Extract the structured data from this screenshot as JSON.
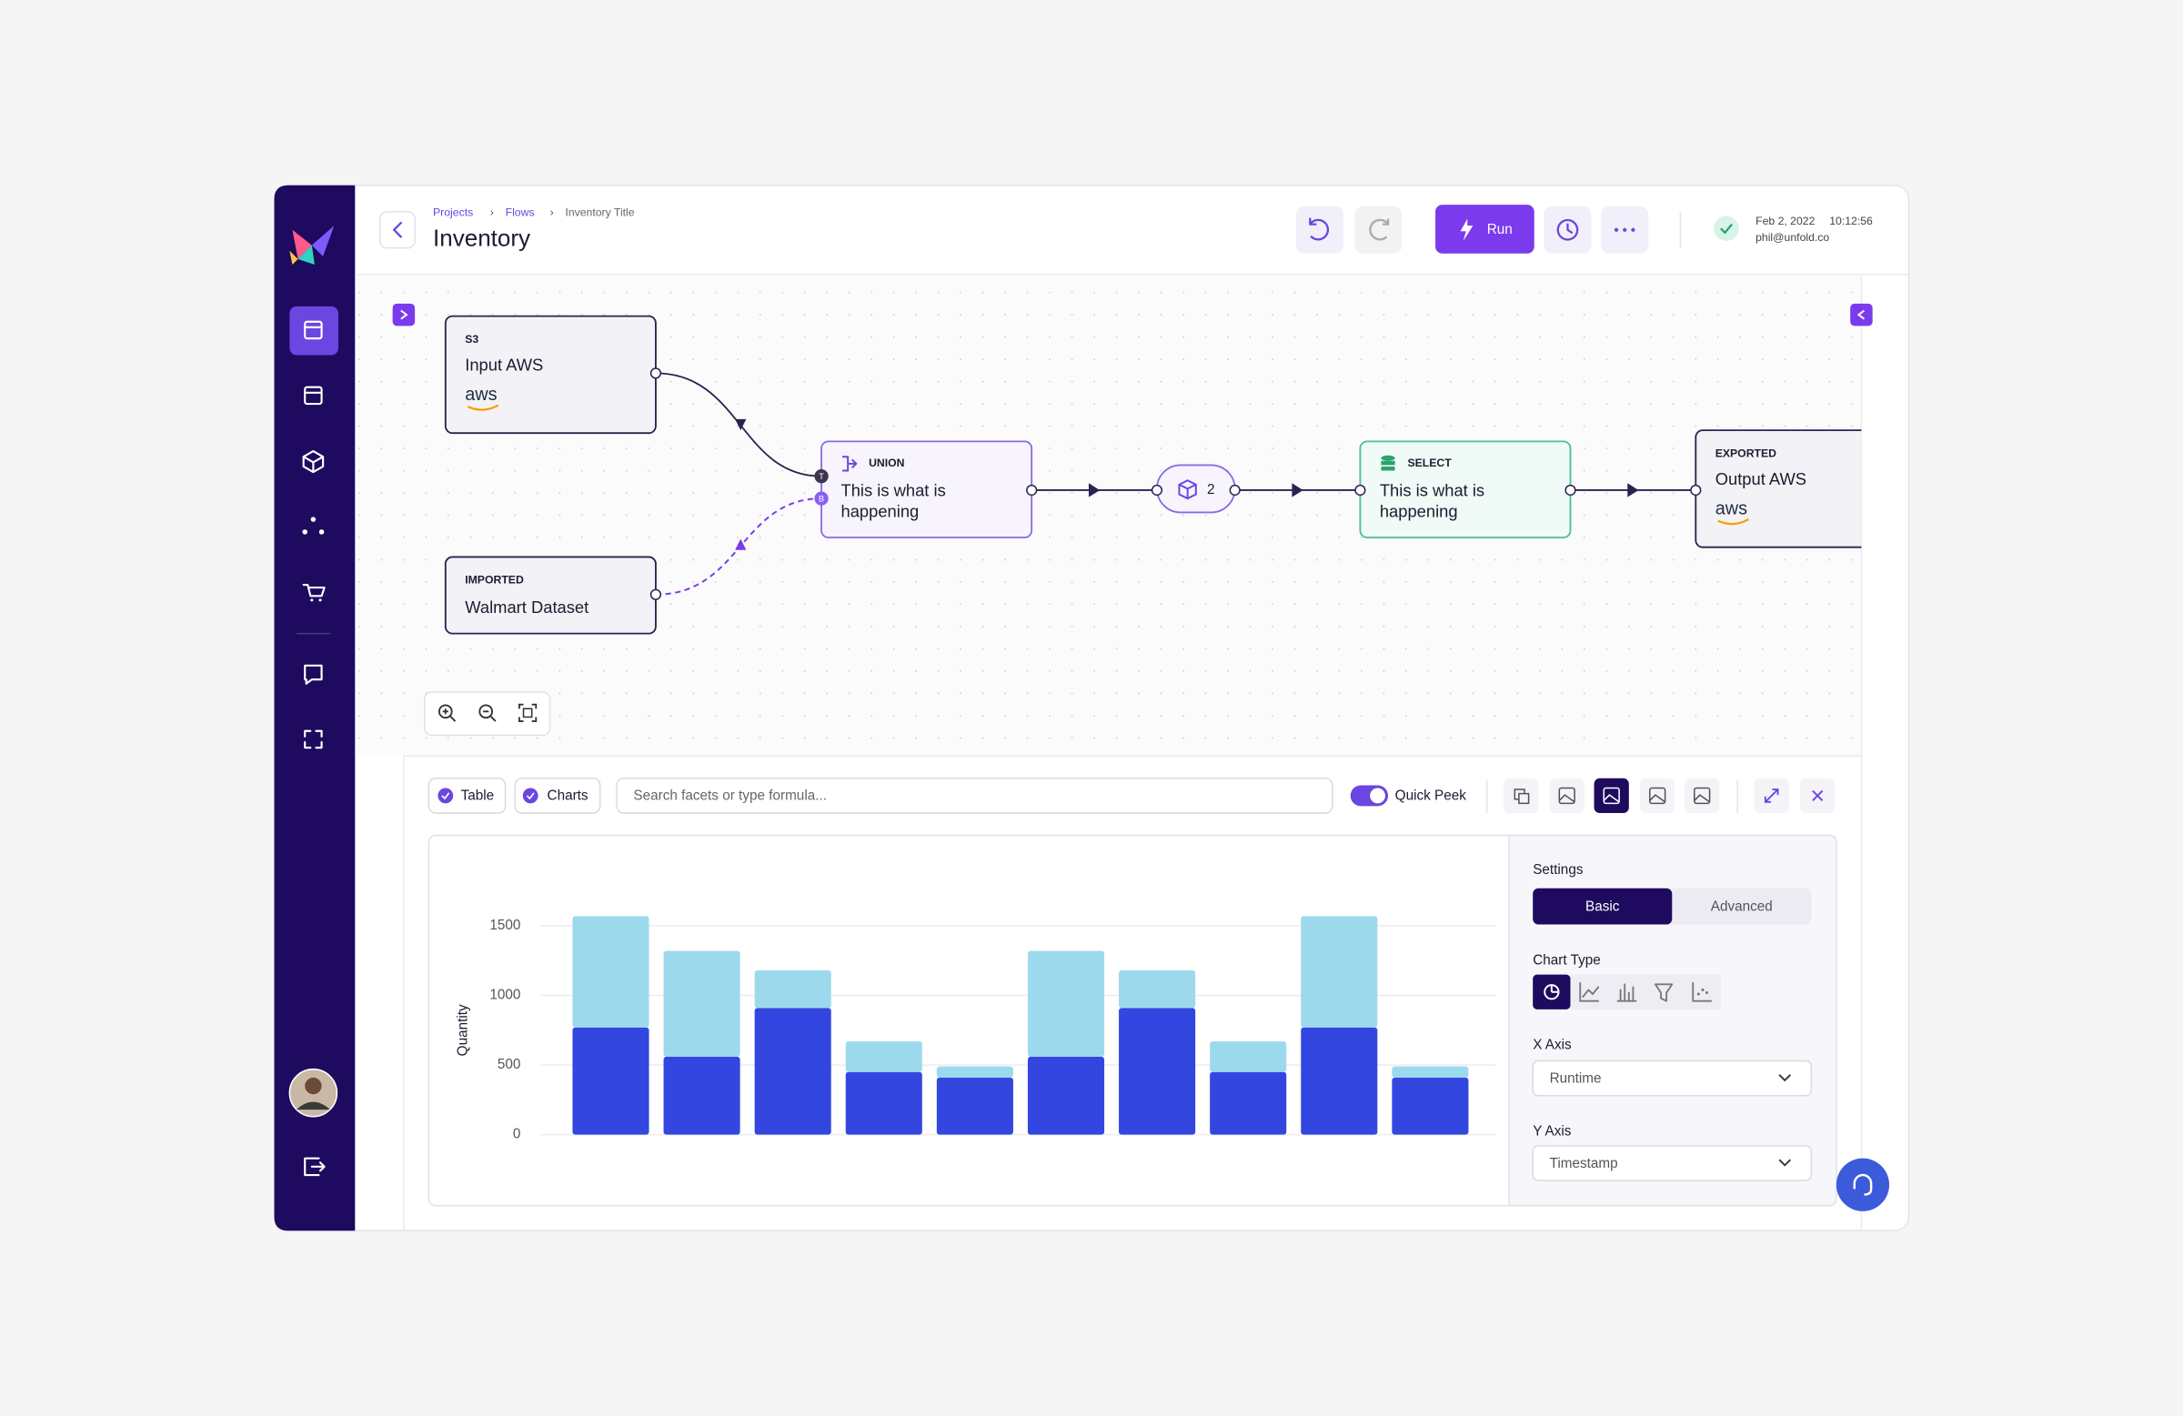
{
  "header": {
    "breadcrumb": [
      "Projects",
      "Flows",
      "Inventory Title"
    ],
    "title": "Inventory",
    "run": "Run",
    "date": "Feb 2, 2022",
    "time": "10:12:56",
    "user": "phil@unfold.co"
  },
  "flow": {
    "nodes": [
      {
        "kind": "S3",
        "label": "Input AWS",
        "logo": "aws"
      },
      {
        "kind": "IMPORTED",
        "label": "Walmart Dataset"
      },
      {
        "kind": "UNION",
        "label": [
          "This is what is",
          "happening"
        ],
        "ports": [
          "T",
          "B"
        ]
      },
      {
        "label": "2"
      },
      {
        "kind": "SELECT",
        "label": [
          "This is what is",
          "happening"
        ]
      },
      {
        "kind": "EXPORTED",
        "label": "Output AWS",
        "logo": "aws"
      }
    ]
  },
  "toolbar": {
    "tabs": [
      "Table",
      "Charts"
    ],
    "search_placeholder": "Search facets or type formula...",
    "quick_peek": "Quick Peek"
  },
  "chart_data": {
    "type": "bar",
    "stacked": true,
    "ylabel": "Quantity",
    "ylim": [
      0,
      1600
    ],
    "yticks": [
      0,
      500,
      1000,
      1500
    ],
    "grid": true,
    "series": [
      {
        "color": "#3347e0",
        "values": [
          770,
          560,
          910,
          450,
          410,
          560,
          910,
          450,
          770,
          410
        ]
      },
      {
        "color": "#9dd9ec",
        "values": [
          800,
          760,
          270,
          220,
          80,
          760,
          270,
          220,
          800,
          80
        ]
      }
    ]
  },
  "settings": {
    "title": "Settings",
    "modes": [
      "Basic",
      "Advanced"
    ],
    "chart_type": "Chart Type",
    "x_axis": {
      "label": "X Axis",
      "value": "Runtime"
    },
    "y_axis": {
      "label": "Y Axis",
      "value": "Timestamp"
    }
  }
}
